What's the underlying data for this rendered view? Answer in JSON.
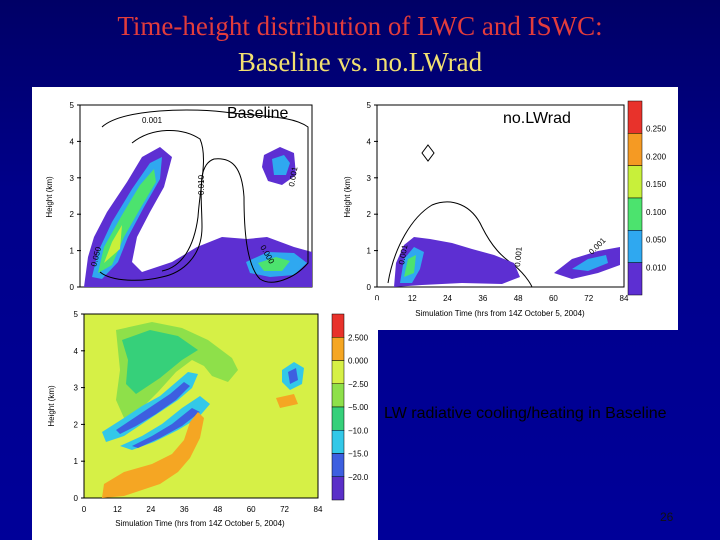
{
  "slide": {
    "title_line1": "Time-height distribution of LWC and ISWC:",
    "title_line2": "Baseline vs. no.LWrad",
    "caption": "LW radiative cooling/heating in Baseline",
    "page_number": "26"
  },
  "colors": {
    "slide_bg": "#00008a",
    "title1": "#e23c3c",
    "title2": "#f2e070"
  },
  "chart_data": [
    {
      "type": "heatmap",
      "title": "Baseline",
      "xlabel": "",
      "ylabel": "Height (km)",
      "xlim": [
        0,
        84
      ],
      "ylim": [
        0,
        5
      ],
      "x_ticks": [],
      "y_ticks": [
        "0",
        "1",
        "2",
        "3",
        "4",
        "5"
      ],
      "contour_labels": [
        "0.001",
        "0.010",
        "0.001",
        "0.000",
        "0.050"
      ]
    },
    {
      "type": "heatmap",
      "title": "no.LWrad",
      "xlabel": "Simulation Time (hrs from 14Z October 5, 2004)",
      "ylabel": "Height (km)",
      "xlim": [
        0,
        84
      ],
      "ylim": [
        0,
        5
      ],
      "x_ticks": [
        "0",
        "12",
        "24",
        "36",
        "48",
        "60",
        "72",
        "84"
      ],
      "y_ticks": [
        "0",
        "1",
        "2",
        "3",
        "4",
        "5"
      ],
      "contour_labels": [
        "0.001",
        "0.001",
        "0.001"
      ],
      "colorbar": {
        "ticks": [
          "0.250",
          "0.200",
          "0.150",
          "0.100",
          "0.050",
          "0.010"
        ],
        "colors": [
          "#e8322b",
          "#f59a23",
          "#c8f03a",
          "#4ce36e",
          "#2fa8f0",
          "#5d2fd2"
        ]
      }
    },
    {
      "type": "heatmap",
      "title": "",
      "xlabel": "Simulation Time (hrs from 14Z October 5, 2004)",
      "ylabel": "Height (km)",
      "xlim": [
        0,
        84
      ],
      "ylim": [
        0,
        5
      ],
      "x_ticks": [
        "0",
        "12",
        "24",
        "36",
        "48",
        "60",
        "72",
        "84"
      ],
      "y_ticks": [
        "0",
        "1",
        "2",
        "3",
        "4",
        "5"
      ],
      "colorbar": {
        "ticks": [
          "2.500",
          "0.000",
          "−2.50",
          "−5.00",
          "−10.0",
          "−15.0",
          "−20.0"
        ],
        "colors": [
          "#e8322b",
          "#f5a623",
          "#d6f046",
          "#8ee04a",
          "#36d07a",
          "#33c8e8",
          "#3d5fe0",
          "#5a2fc8"
        ]
      }
    }
  ]
}
